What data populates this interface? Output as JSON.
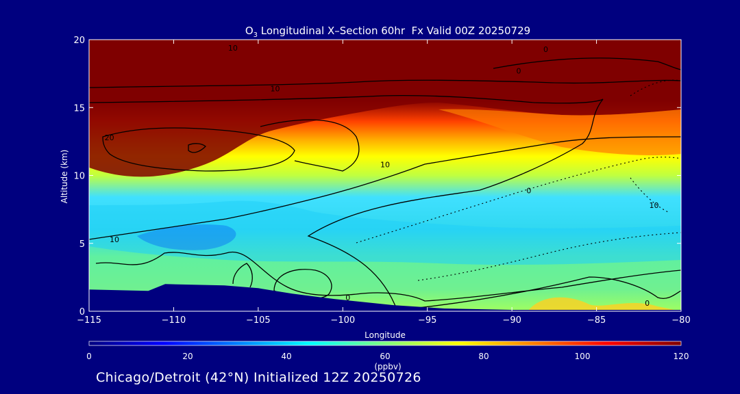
{
  "chart_data": {
    "type": "heatmap",
    "title_species": "O",
    "title_subscript": "3",
    "title_rest": " Longitudinal X–Section 60hr  Fx Valid 00Z 20250729",
    "xlabel": "Longitude",
    "ylabel": "Altitude (km)",
    "xlim": [
      -115,
      -80
    ],
    "ylim": [
      0,
      20
    ],
    "x_ticks": [
      -115,
      -110,
      -105,
      -100,
      -95,
      -90,
      -85,
      -80
    ],
    "x_tick_labels": [
      "−115",
      "−110",
      "−105",
      "−100",
      "−95",
      "−90",
      "−85",
      "−80"
    ],
    "y_ticks": [
      0,
      5,
      10,
      15,
      20
    ],
    "y_tick_labels": [
      "0",
      "5",
      "10",
      "15",
      "20"
    ],
    "colorbar": {
      "range": [
        0,
        120
      ],
      "ticks": [
        0,
        20,
        40,
        60,
        80,
        100,
        120
      ],
      "tick_labels": [
        "0",
        "20",
        "40",
        "60",
        "80",
        "100",
        "120"
      ],
      "unit": "(ppbv)",
      "colors": [
        "#00007f",
        "#0000ff",
        "#007fff",
        "#00ffff",
        "#7fff7f",
        "#ffff00",
        "#ff7f00",
        "#ff0000",
        "#7f0000"
      ]
    },
    "contour_labels": [
      {
        "lon": -106.5,
        "alt": 19.4,
        "text": "10"
      },
      {
        "lon": -104.0,
        "alt": 16.4,
        "text": "10"
      },
      {
        "lon": -113.8,
        "alt": 12.8,
        "text": "20"
      },
      {
        "lon": -97.5,
        "alt": 10.8,
        "text": "10"
      },
      {
        "lon": -113.5,
        "alt": 5.3,
        "text": "10"
      },
      {
        "lon": -89.0,
        "alt": 8.9,
        "text": "0"
      },
      {
        "lon": -99.7,
        "alt": 1.0,
        "text": "0"
      },
      {
        "lon": -89.6,
        "alt": 17.7,
        "text": "0"
      },
      {
        "lon": -81.6,
        "alt": 7.8,
        "text": "10"
      },
      {
        "lon": -82.0,
        "alt": 0.6,
        "text": "0"
      },
      {
        "lon": -88.0,
        "alt": 19.3,
        "text": "0"
      }
    ],
    "colormap": [
      {
        "c": 0,
        "color": "#00007f"
      },
      {
        "c": 15,
        "color": "#0000ff"
      },
      {
        "c": 30,
        "color": "#007fff"
      },
      {
        "c": 45,
        "color": "#00ffff"
      },
      {
        "c": 60,
        "color": "#7fff7f"
      },
      {
        "c": 75,
        "color": "#ffff00"
      },
      {
        "c": 90,
        "color": "#ff7f00"
      },
      {
        "c": 105,
        "color": "#ff0000"
      },
      {
        "c": 120,
        "color": "#7f0000"
      }
    ],
    "terrain_alt_km": [
      {
        "lon": -115.0,
        "alt": 1.6
      },
      {
        "lon": -111.5,
        "alt": 1.5
      },
      {
        "lon": -110.5,
        "alt": 2.0
      },
      {
        "lon": -107.0,
        "alt": 1.9
      },
      {
        "lon": -105.0,
        "alt": 1.7
      },
      {
        "lon": -103.0,
        "alt": 1.3
      },
      {
        "lon": -100.5,
        "alt": 0.9
      },
      {
        "lon": -97.0,
        "alt": 0.45
      },
      {
        "lon": -94.0,
        "alt": 0.2
      },
      {
        "lon": -90.0,
        "alt": 0.1
      },
      {
        "lon": -80.0,
        "alt": 0.1
      }
    ]
  },
  "footer": "Chicago/Detroit (42°N) Initialized 12Z 20250726"
}
